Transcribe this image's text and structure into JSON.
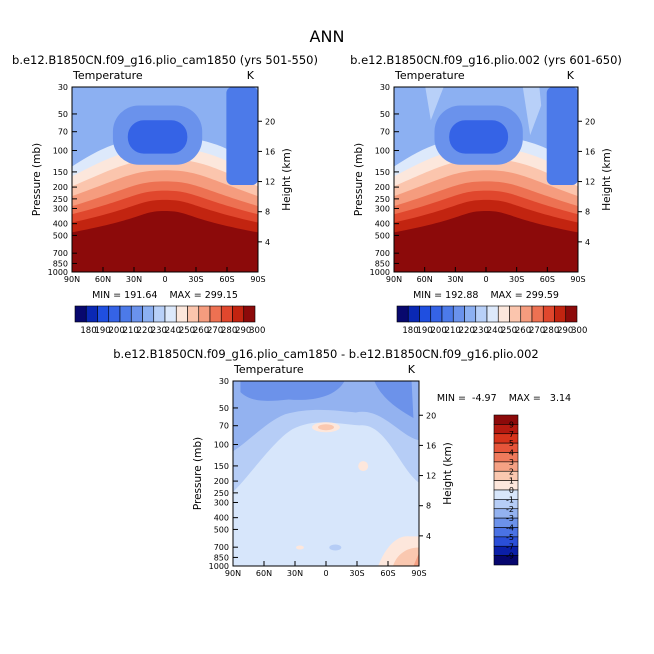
{
  "figure_title": "ANN",
  "chart_data": [
    {
      "type": "heatmap",
      "title": "b.e12.B1850CN.f09_g16.plio_cam1850 (yrs 501-550)",
      "variable_label": "Temperature",
      "units": "K",
      "ylabel": "Pressure (mb)",
      "y2label": "Height (km)",
      "x_ticks": [
        "90N",
        "60N",
        "30N",
        "0",
        "30S",
        "60S",
        "90S"
      ],
      "y_ticks": [
        30,
        50,
        70,
        100,
        150,
        200,
        250,
        300,
        400,
        500,
        700,
        850,
        1000
      ],
      "y2_ticks": [
        4,
        8,
        12,
        16,
        20
      ],
      "stats_text": "MIN = 191.64    MAX = 299.15",
      "min": 191.64,
      "max": 299.15,
      "levels": [
        180,
        190,
        200,
        210,
        220,
        230,
        240,
        250,
        260,
        270,
        280,
        290,
        300
      ],
      "colorbar_labels": [
        "180",
        "190",
        "200",
        "210",
        "220",
        "230",
        "240",
        "250",
        "260",
        "270",
        "280",
        "290",
        "300"
      ]
    },
    {
      "type": "heatmap",
      "title": "b.e12.B1850CN.f09_g16.plio.002 (yrs 601-650)",
      "variable_label": "Temperature",
      "units": "K",
      "ylabel": "Pressure (mb)",
      "y2label": "Height (km)",
      "x_ticks": [
        "90N",
        "60N",
        "30N",
        "0",
        "30S",
        "60S",
        "90S"
      ],
      "y_ticks": [
        30,
        50,
        70,
        100,
        150,
        200,
        250,
        300,
        400,
        500,
        700,
        850,
        1000
      ],
      "y2_ticks": [
        4,
        8,
        12,
        16,
        20
      ],
      "stats_text": "MIN = 192.88    MAX = 299.59",
      "min": 192.88,
      "max": 299.59,
      "levels": [
        180,
        190,
        200,
        210,
        220,
        230,
        240,
        250,
        260,
        270,
        280,
        290,
        300
      ],
      "colorbar_labels": [
        "180",
        "190",
        "200",
        "210",
        "220",
        "230",
        "240",
        "250",
        "260",
        "270",
        "280",
        "290",
        "300"
      ]
    },
    {
      "type": "heatmap",
      "title": "b.e12.B1850CN.f09_g16.plio_cam1850 - b.e12.B1850CN.f09_g16.plio.002",
      "variable_label": "Temperature",
      "units": "K",
      "ylabel": "Pressure (mb)",
      "y2label": "Height (km)",
      "x_ticks": [
        "90N",
        "60N",
        "30N",
        "0",
        "30S",
        "60S",
        "90S"
      ],
      "y_ticks": [
        30,
        50,
        70,
        100,
        150,
        200,
        250,
        300,
        400,
        500,
        700,
        850,
        1000
      ],
      "y2_ticks": [
        4,
        8,
        12,
        16,
        20
      ],
      "stats_text": "MIN =  -4.97    MAX =   3.14",
      "min": -4.97,
      "max": 3.14,
      "levels": [
        -9,
        -7,
        -5,
        -4,
        -3,
        -2,
        -1,
        0,
        1,
        2,
        3,
        4,
        5,
        7,
        9
      ],
      "colorbar_labels": [
        "9",
        "7",
        "5",
        "4",
        "3",
        "2",
        "1",
        "0",
        "-1",
        "-2",
        "-3",
        "-4",
        "-5",
        "-7",
        "-9"
      ]
    }
  ],
  "colors": {
    "temp_scale": [
      "#08086e",
      "#0a28b4",
      "#1f4fe0",
      "#3563e6",
      "#4c7ae9",
      "#6a92ec",
      "#8cb0f2",
      "#b8d0f8",
      "#dde9fb",
      "#fce7dc",
      "#fbc5ad",
      "#f59c7e",
      "#ed7152",
      "#e0472d",
      "#c22410",
      "#8c0a0a"
    ],
    "diff_scale": [
      "#8c0a0a",
      "#b51a10",
      "#d7341c",
      "#e6553a",
      "#ef7a5c",
      "#f5a184",
      "#fac8b0",
      "#fde7dc",
      "#d7e6fb",
      "#b6cdf6",
      "#93b2f0",
      "#6c92ea",
      "#4a72e4",
      "#2a4ed8",
      "#0b1fa8",
      "#06066e"
    ]
  }
}
